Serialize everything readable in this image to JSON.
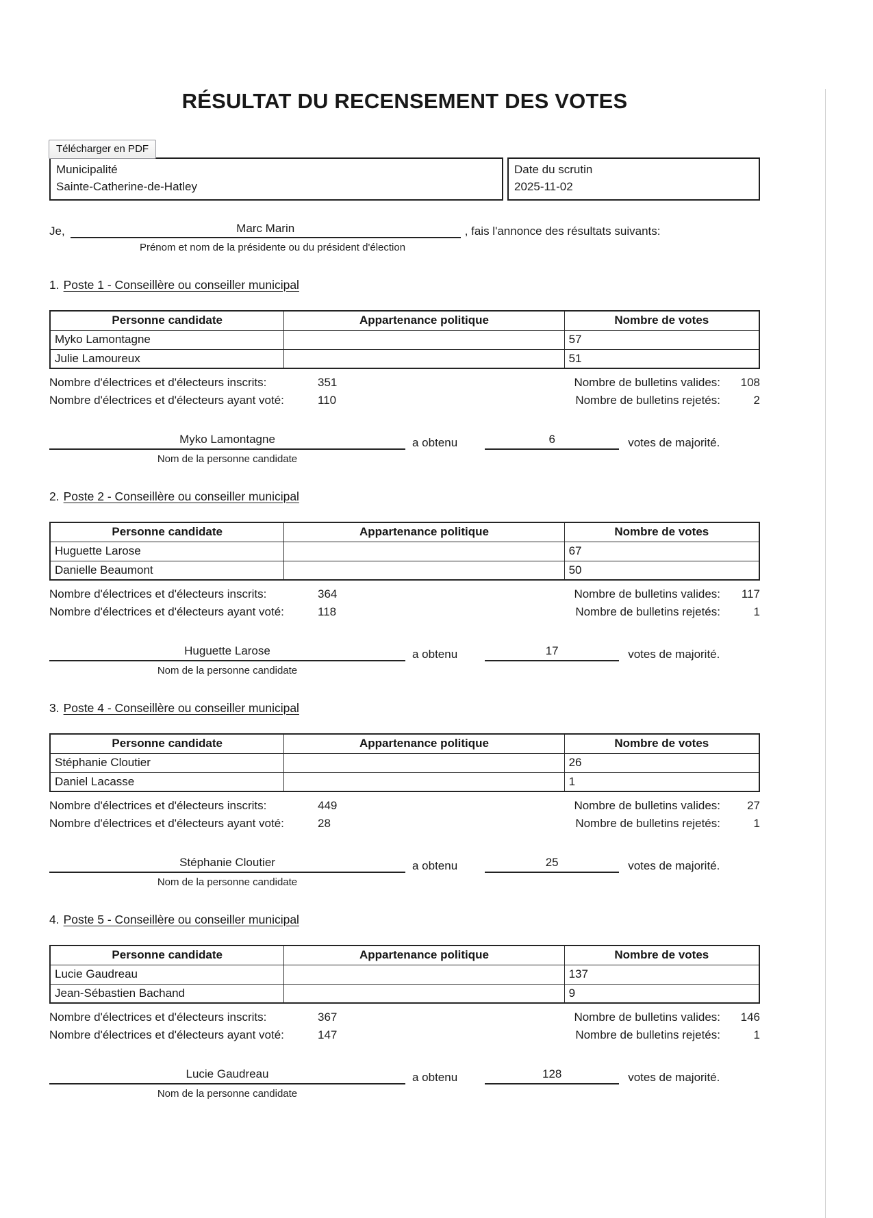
{
  "toolbar": {
    "download_button": "Télécharger en PDF"
  },
  "title": "RÉSULTAT DU RECENSEMENT DES VOTES",
  "info": {
    "municipality_label": "Municipalité",
    "municipality_value": "Sainte-Catherine-de-Hatley",
    "date_label": "Date du scrutin",
    "date_value": "2025-11-02"
  },
  "announcement": {
    "prefix": "Je,",
    "president_name": "Marc Marin",
    "suffix": ", fais l'annonce des résultats suivants:",
    "caption": "Prénom et nom de la présidente ou du président d'élection"
  },
  "labels": {
    "registered": "Nombre d'électrices et d'électeurs inscrits:",
    "voted": "Nombre d'électrices et d'électeurs ayant voté:",
    "valid": "Nombre de bulletins valides:",
    "rejected": "Nombre de bulletins rejetés:",
    "obtained": "a obtenu",
    "majority": "votes de majorité.",
    "candidate_caption": "Nom de la personne candidate"
  },
  "table_headers": [
    "Personne candidate",
    "Appartenance politique",
    "Nombre de votes"
  ],
  "sections": [
    {
      "number": "1.",
      "heading": "Poste 1 - Conseillère ou conseiller municipal",
      "candidates": [
        {
          "name": "Myko Lamontagne",
          "affiliation": "",
          "votes": "57"
        },
        {
          "name": "Julie Lamoureux",
          "affiliation": "",
          "votes": "51"
        }
      ],
      "registered": "351",
      "voted": "110",
      "valid": "108",
      "rejected": "2",
      "winner": "Myko Lamontagne",
      "majority_votes": "6"
    },
    {
      "number": "2.",
      "heading": "Poste 2 - Conseillère ou conseiller municipal",
      "candidates": [
        {
          "name": "Huguette Larose",
          "affiliation": "",
          "votes": "67"
        },
        {
          "name": "Danielle Beaumont",
          "affiliation": "",
          "votes": "50"
        }
      ],
      "registered": "364",
      "voted": "118",
      "valid": "117",
      "rejected": "1",
      "winner": "Huguette Larose",
      "majority_votes": "17"
    },
    {
      "number": "3.",
      "heading": "Poste 4 - Conseillère ou conseiller municipal",
      "candidates": [
        {
          "name": "Stéphanie Cloutier",
          "affiliation": "",
          "votes": "26"
        },
        {
          "name": "Daniel Lacasse",
          "affiliation": "",
          "votes": "1"
        }
      ],
      "registered": "449",
      "voted": "28",
      "valid": "27",
      "rejected": "1",
      "winner": "Stéphanie Cloutier",
      "majority_votes": "25"
    },
    {
      "number": "4.",
      "heading": "Poste 5 - Conseillère ou conseiller municipal",
      "candidates": [
        {
          "name": "Lucie Gaudreau",
          "affiliation": "",
          "votes": "137"
        },
        {
          "name": "Jean-Sébastien Bachand",
          "affiliation": "",
          "votes": "9"
        }
      ],
      "registered": "367",
      "voted": "147",
      "valid": "146",
      "rejected": "1",
      "winner": "Lucie Gaudreau",
      "majority_votes": "128"
    }
  ]
}
